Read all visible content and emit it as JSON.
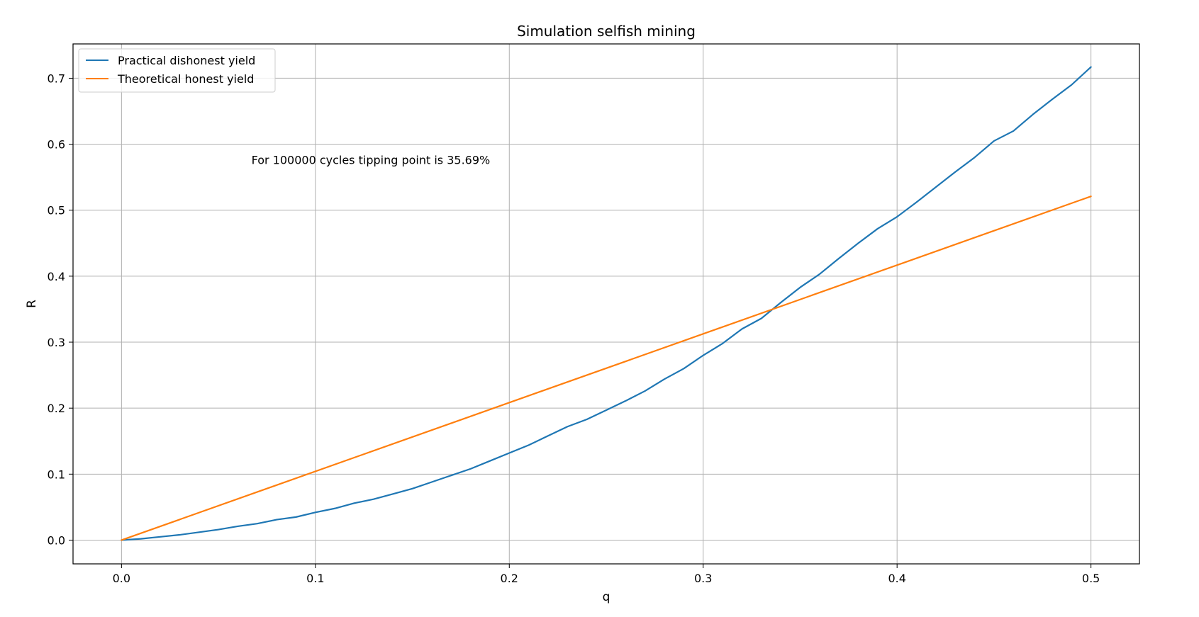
{
  "chart_data": {
    "type": "line",
    "title": "Simulation selfish mining",
    "xlabel": "q",
    "ylabel": "R",
    "xlim": [
      -0.025,
      0.525
    ],
    "ylim": [
      -0.036,
      0.752
    ],
    "xticks": [
      0.0,
      0.1,
      0.2,
      0.3,
      0.4,
      0.5
    ],
    "yticks": [
      0.0,
      0.1,
      0.2,
      0.3,
      0.4,
      0.5,
      0.6,
      0.7
    ],
    "xtick_labels": [
      "0.0",
      "0.1",
      "0.2",
      "0.3",
      "0.4",
      "0.5"
    ],
    "ytick_labels": [
      "0.0",
      "0.1",
      "0.2",
      "0.3",
      "0.4",
      "0.5",
      "0.6",
      "0.7"
    ],
    "grid": true,
    "legend_position": "top-left",
    "annotation": {
      "text": "For 100000 cycles tipping point is 35.69%",
      "x": 0.067,
      "y": 0.57
    },
    "series": [
      {
        "name": "Practical dishonest yield",
        "color": "#1f77b4",
        "x": [
          0.0,
          0.01,
          0.02,
          0.03,
          0.04,
          0.05,
          0.06,
          0.07,
          0.08,
          0.09,
          0.1,
          0.11,
          0.12,
          0.13,
          0.14,
          0.15,
          0.16,
          0.17,
          0.18,
          0.19,
          0.2,
          0.21,
          0.22,
          0.23,
          0.24,
          0.25,
          0.26,
          0.27,
          0.28,
          0.29,
          0.3,
          0.31,
          0.32,
          0.33,
          0.34,
          0.35,
          0.36,
          0.37,
          0.38,
          0.39,
          0.4,
          0.41,
          0.42,
          0.43,
          0.44,
          0.45,
          0.46,
          0.47,
          0.48,
          0.49,
          0.5
        ],
        "y": [
          0.0,
          0.002,
          0.005,
          0.008,
          0.012,
          0.016,
          0.021,
          0.025,
          0.031,
          0.035,
          0.042,
          0.048,
          0.056,
          0.062,
          0.07,
          0.078,
          0.088,
          0.098,
          0.108,
          0.12,
          0.132,
          0.144,
          0.158,
          0.172,
          0.183,
          0.197,
          0.211,
          0.226,
          0.244,
          0.26,
          0.28,
          0.298,
          0.32,
          0.336,
          0.36,
          0.383,
          0.403,
          0.427,
          0.45,
          0.472,
          0.49,
          0.512,
          0.535,
          0.558,
          0.58,
          0.605,
          0.62,
          0.645,
          0.668,
          0.69,
          0.717
        ]
      },
      {
        "name": "Theoretical honest yield",
        "color": "#ff7f0e",
        "x": [
          0.0,
          0.5
        ],
        "y": [
          0.0,
          0.521
        ]
      }
    ]
  }
}
